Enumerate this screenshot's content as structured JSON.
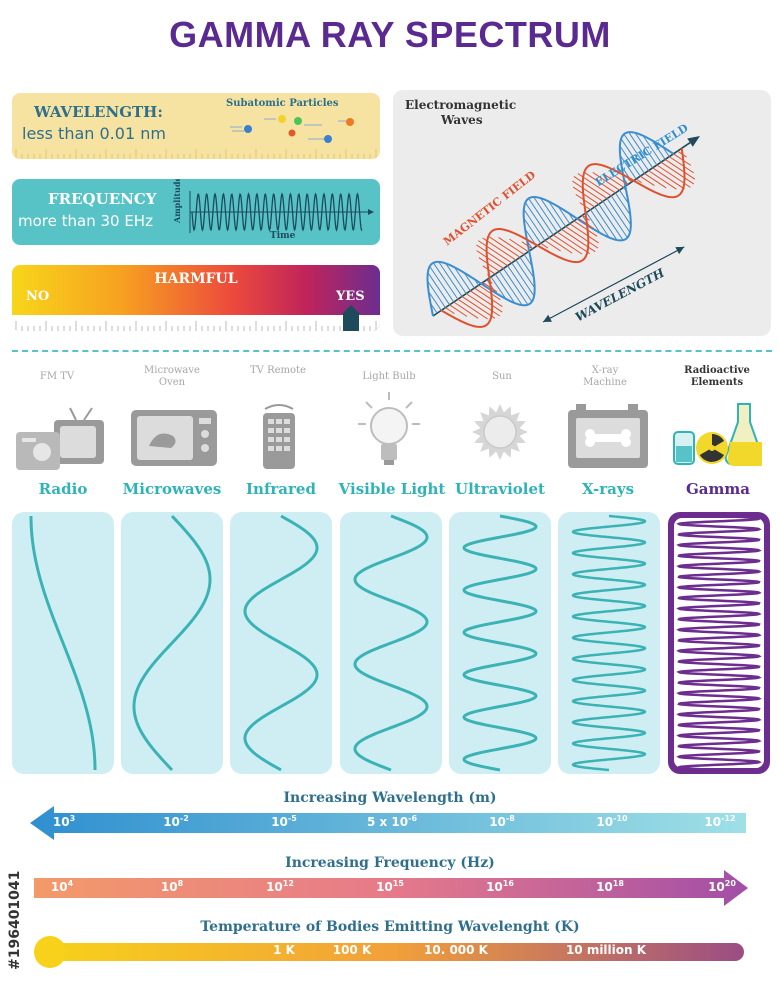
{
  "title": "GAMMA RAY SPECTRUM",
  "wavelength_card": {
    "label": "WAVELENGTH:",
    "value": "less than 0.01 nm",
    "particles_label": "Subatomic Particles"
  },
  "frequency_card": {
    "label": "FREQUENCY",
    "value": "more than 30 EHz",
    "axis_y": "Amplitude",
    "axis_x": "Time"
  },
  "harmful_card": {
    "label": "HARMFUL",
    "left": "NO",
    "right": "YES",
    "level": 0.92
  },
  "em_waves": {
    "title_line1": "Electromagnetic",
    "title_line2": "Waves",
    "electric": "ELECTRIC FIELD",
    "magnetic": "MAGNETIC FIELD",
    "wavelength": "WAVELENGTH"
  },
  "bands": [
    {
      "source": "FM   TV",
      "name": "Radio",
      "icon": "radio-tv-icon",
      "cycles": 0.5
    },
    {
      "source": "Microwave Oven",
      "name": "Microwaves",
      "icon": "microwave-oven-icon",
      "cycles": 1
    },
    {
      "source": "TV Remote",
      "name": "Infrared",
      "icon": "tv-remote-icon",
      "cycles": 2
    },
    {
      "source": "Light Bulb",
      "name": "Visible Light",
      "icon": "light-bulb-icon",
      "cycles": 3
    },
    {
      "source": "Sun",
      "name": "Ultraviolet",
      "icon": "sun-icon",
      "cycles": 6
    },
    {
      "source": "X-ray Machine",
      "name": "X-rays",
      "icon": "xray-machine-icon",
      "cycles": 12
    },
    {
      "source": "Radioactive Elements",
      "name": "Gamma",
      "icon": "radioactive-elements-icon",
      "cycles": 24
    }
  ],
  "wavelength_scale": {
    "title": "Increasing Wavelength (m)",
    "ticks": [
      "10",
      "10",
      "10",
      "5 x 10",
      "10",
      "10",
      "10"
    ],
    "exponents": [
      "3",
      "-2",
      "-5",
      "-6",
      "-8",
      "-10",
      "-12"
    ]
  },
  "frequency_scale": {
    "title": "Increasing Frequency (Hz)",
    "ticks": [
      "10",
      "10",
      "10",
      "10",
      "10",
      "10",
      "10"
    ],
    "exponents": [
      "4",
      "8",
      "12",
      "15",
      "16",
      "18",
      "20"
    ]
  },
  "temperature_scale": {
    "title": "Temperature of Bodies Emitting Wavelenght (K)",
    "ticks": [
      "1 K",
      "100 K",
      "10. 000 K",
      "10 million K"
    ]
  },
  "side_id": "#196401041",
  "colors": {
    "purple": "#5b2a91",
    "teal": "#2fb3b8",
    "wave": "#3bb3b5",
    "gamma": "#6c2d8f"
  }
}
